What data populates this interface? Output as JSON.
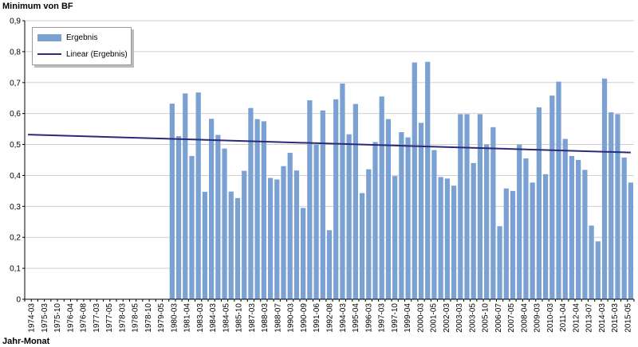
{
  "chart_data": {
    "type": "bar",
    "ylabel": "Minimum von BF",
    "xlabel": "Jahr-Monat",
    "ylim": [
      0,
      0.9
    ],
    "yticks": [
      "0",
      "0,1",
      "0,2",
      "0,3",
      "0,4",
      "0,5",
      "0,6",
      "0,7",
      "0,8",
      "0,9"
    ],
    "grid": true,
    "legend_position": "top-left",
    "colors": {
      "bar": "#7aa1d2",
      "trend": "#2a2a78",
      "grid": "#cfcfcf"
    },
    "x_tick_labels": [
      "1974-03",
      "1975-03",
      "1975-10",
      "1976-04",
      "1976-08",
      "1977-03",
      "1977-05",
      "1978-03",
      "1978-05",
      "1978-10",
      "1979-05",
      "1980-03",
      "1981-04",
      "1983-03",
      "1984-03",
      "1984-05",
      "1985-10",
      "1987-03",
      "1988-03",
      "1988-07",
      "1990-03",
      "1990-09",
      "1991-06",
      "1992-08",
      "1994-03",
      "1995-04",
      "1996-03",
      "1997-03",
      "1997-10",
      "1999-04",
      "2000-03",
      "2001-05",
      "2002-03",
      "2003-03",
      "2003-05",
      "2005-10",
      "2006-07",
      "2007-05",
      "2008-04",
      "2009-03",
      "2010-03",
      "2011-04",
      "2012-04",
      "2013-07",
      "2014-03",
      "2015-03",
      "2015-05"
    ],
    "n_empty_leading": 22,
    "series": [
      {
        "name": "Ergebnis",
        "values": [
          0.632,
          0.527,
          0.665,
          0.463,
          0.668,
          0.347,
          0.583,
          0.531,
          0.487,
          0.348,
          0.327,
          0.415,
          0.618,
          0.582,
          0.575,
          0.392,
          0.387,
          0.43,
          0.473,
          0.416,
          0.295,
          0.643,
          0.5,
          0.61,
          0.223,
          0.646,
          0.697,
          0.533,
          0.631,
          0.343,
          0.42,
          0.508,
          0.655,
          0.582,
          0.398,
          0.54,
          0.523,
          0.765,
          0.57,
          0.767,
          0.482,
          0.395,
          0.39,
          0.367,
          0.598,
          0.598,
          0.44,
          0.598,
          0.5,
          0.556,
          0.236,
          0.358,
          0.35,
          0.5,
          0.455,
          0.377,
          0.62,
          0.404,
          0.658,
          0.703,
          0.518,
          0.463,
          0.45,
          0.418,
          0.238,
          0.187,
          0.713,
          0.604,
          0.598,
          0.458,
          0.377
        ]
      },
      {
        "name": "Linear (Ergebnis)",
        "type": "line",
        "start_value": 0.532,
        "end_value": 0.474
      }
    ]
  }
}
